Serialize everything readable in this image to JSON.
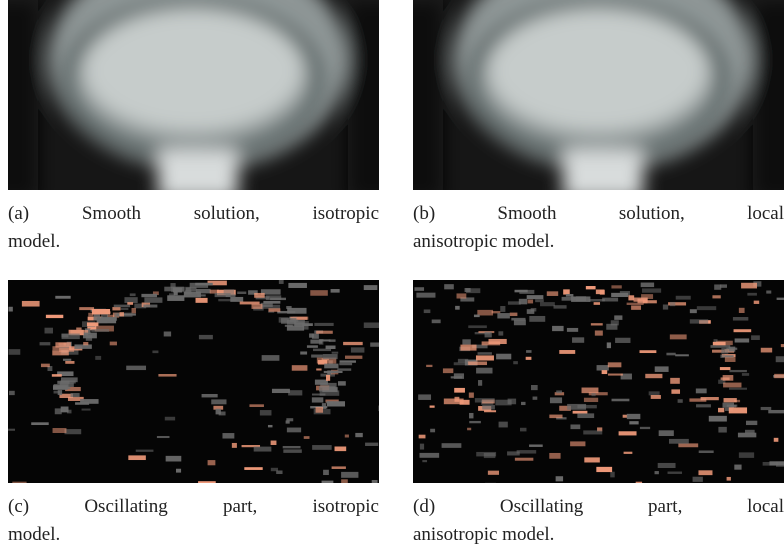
{
  "figures": [
    {
      "caption": [
        "(a) Smooth solution, isotropic",
        "model."
      ]
    },
    {
      "caption": [
        "(b) Smooth solution, local",
        "anisotropic model."
      ]
    },
    {
      "caption": [
        "(c) Oscillating part, isotropic",
        "model."
      ]
    },
    {
      "caption": [
        "(d) Oscillating part, local",
        "anisotropic model."
      ]
    }
  ]
}
